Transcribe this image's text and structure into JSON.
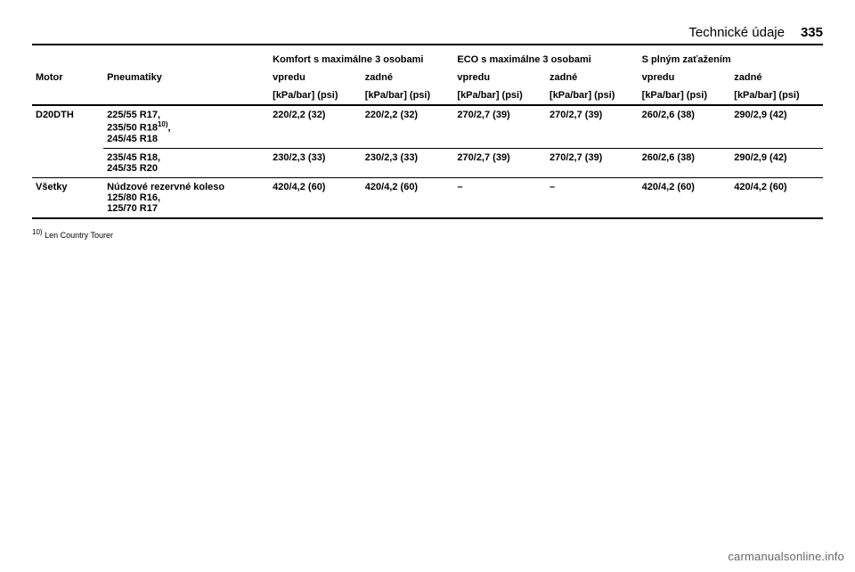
{
  "header": {
    "title": "Technické údaje",
    "page_number": "335"
  },
  "table": {
    "group_headers": {
      "comfort": "Komfort s maximálne 3 osobami",
      "eco": "ECO s maximálne 3 osobami",
      "full": "S plným zaťažením"
    },
    "col_headers": {
      "motor": "Motor",
      "tyres": "Pneumatiky",
      "front": "vpredu",
      "rear": "zadné"
    },
    "unit": "[kPa/bar] (psi)",
    "rows": [
      {
        "motor": "D20DTH",
        "tyres_lines": [
          "225/55 R17,",
          "235/50 R18",
          ","
        ],
        "tyres_sup": "10)",
        "tyres_line3": "245/45 R18",
        "comfort_front": "220/2,2 (32)",
        "comfort_rear": "220/2,2 (32)",
        "eco_front": "270/2,7 (39)",
        "eco_rear": "270/2,7 (39)",
        "full_front": "260/2,6 (38)",
        "full_rear": "290/2,9 (42)"
      },
      {
        "motor": "",
        "tyres_lines": [
          "235/45 R18,",
          "245/35 R20"
        ],
        "comfort_front": "230/2,3 (33)",
        "comfort_rear": "230/2,3 (33)",
        "eco_front": "270/2,7 (39)",
        "eco_rear": "270/2,7 (39)",
        "full_front": "260/2,6 (38)",
        "full_rear": "290/2,9 (42)"
      },
      {
        "motor": "Všetky",
        "tyres_lines": [
          "Núdzové rezervné koleso",
          "125/80 R16,",
          "125/70 R17"
        ],
        "comfort_front": "420/4,2 (60)",
        "comfort_rear": "420/4,2 (60)",
        "eco_front": "–",
        "eco_rear": "–",
        "full_front": "420/4,2 (60)",
        "full_rear": "420/4,2 (60)"
      }
    ]
  },
  "footnote": {
    "mark": "10)",
    "text": "Len Country Tourer"
  },
  "watermark": "carmanualsonline.info"
}
